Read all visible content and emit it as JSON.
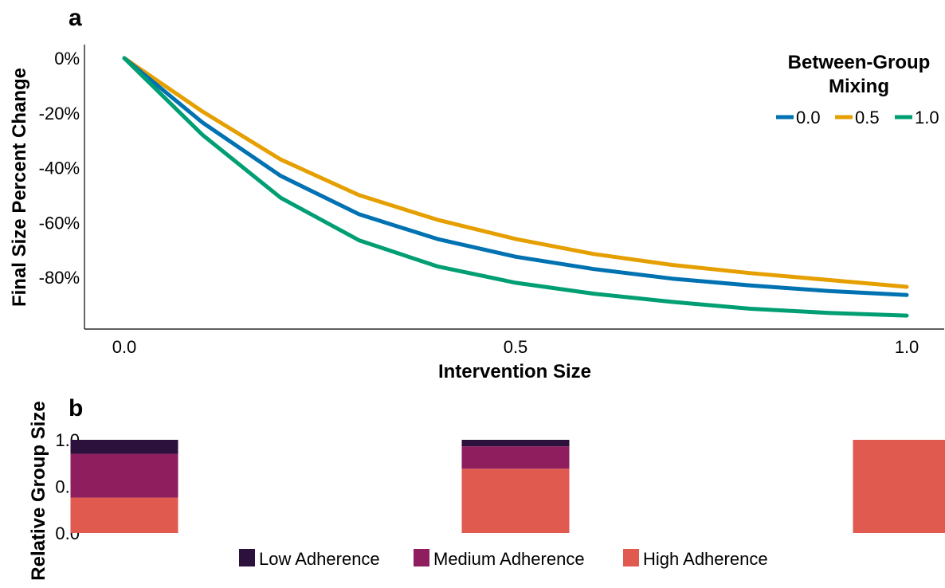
{
  "panel_labels": {
    "a": "a",
    "b": "b"
  },
  "chart_data": [
    {
      "type": "line",
      "panel": "a",
      "xlabel": "Intervention Size",
      "ylabel": "Final Size Percent Change",
      "xlim": [
        -0.05,
        1.05
      ],
      "ylim": [
        -98,
        4
      ],
      "x_ticks": [
        {
          "value": 0.0,
          "label": "0.0"
        },
        {
          "value": 0.5,
          "label": "0.5"
        },
        {
          "value": 1.0,
          "label": "1.0"
        }
      ],
      "y_ticks": [
        {
          "value": 0,
          "label": "0%"
        },
        {
          "value": -20,
          "label": "-20%"
        },
        {
          "value": -40,
          "label": "-40%"
        },
        {
          "value": -60,
          "label": "-60%"
        },
        {
          "value": -80,
          "label": "-80%"
        }
      ],
      "grid": false,
      "legend": {
        "title_line1": "Between-Group",
        "title_line2": "Mixing",
        "placement": "top-right"
      },
      "x": [
        0.0,
        0.1,
        0.2,
        0.3,
        0.4,
        0.5,
        0.6,
        0.7,
        0.8,
        0.9,
        1.0
      ],
      "series": [
        {
          "name": "0.0",
          "color": "#0072B2",
          "values": [
            0,
            -23.5,
            -43,
            -57,
            -66,
            -72.5,
            -77,
            -80.5,
            -83,
            -85,
            -86.5
          ]
        },
        {
          "name": "0.5",
          "color": "#E69F00",
          "values": [
            0,
            -19.5,
            -37,
            -50,
            -59,
            -66,
            -71.5,
            -75.5,
            -78.5,
            -81,
            -83.5
          ]
        },
        {
          "name": "1.0",
          "color": "#009E73",
          "values": [
            0,
            -28,
            -51,
            -66.5,
            -76,
            -82,
            -86,
            -89,
            -91.5,
            -93,
            -94
          ]
        }
      ]
    },
    {
      "type": "bar",
      "stacked": true,
      "panel": "b",
      "ylabel": "Relative Group Size",
      "ylim": [
        0,
        1.0
      ],
      "y_ticks": [
        {
          "value": 0.0,
          "label": "0.0"
        },
        {
          "value": 0.5,
          "label": "0.5"
        },
        {
          "value": 1.0,
          "label": "1.0"
        }
      ],
      "x_positions": [
        0.0,
        0.5,
        1.0
      ],
      "grid": false,
      "legend_placement": "bottom",
      "series": [
        {
          "name": "High Adherence",
          "color": "#E05A50",
          "values": [
            0.38,
            0.69,
            1.0
          ]
        },
        {
          "name": "Medium Adherence",
          "color": "#8E1E5E",
          "values": [
            0.47,
            0.24,
            0.0
          ]
        },
        {
          "name": "Low Adherence",
          "color": "#2C113C",
          "values": [
            0.15,
            0.07,
            0.0
          ]
        }
      ]
    }
  ]
}
